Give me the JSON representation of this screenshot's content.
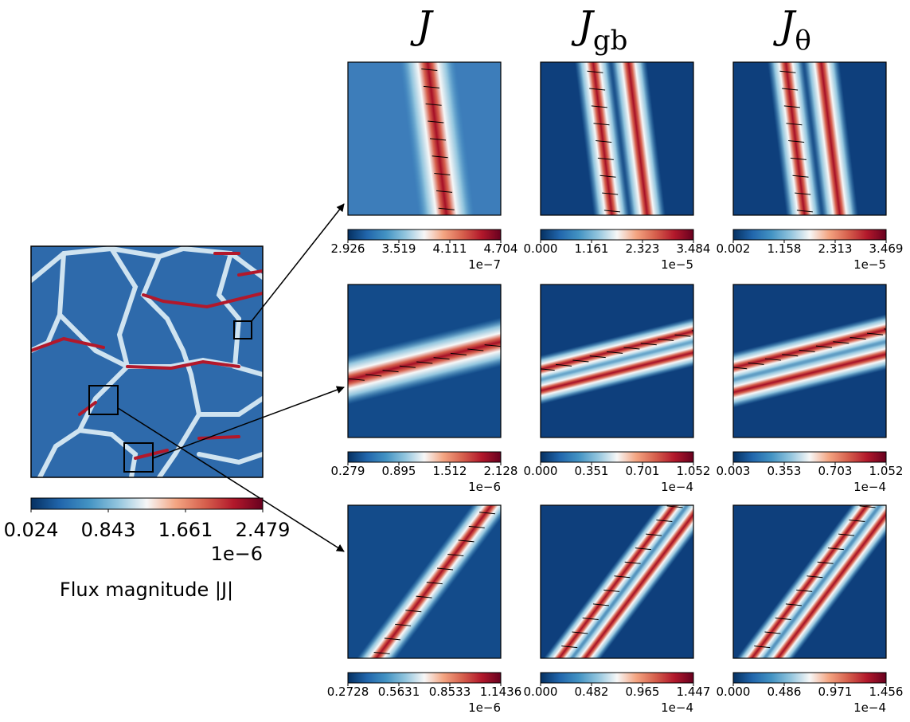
{
  "column_titles": [
    {
      "symbol": "J"
    },
    {
      "symbol": "J",
      "subscript": "gb"
    },
    {
      "symbol": "J",
      "subscript": "θ"
    }
  ],
  "overview": {
    "colorbar": {
      "ticks": [
        "0.024",
        "0.843",
        "1.661",
        "2.479"
      ],
      "exponent": "1e−6"
    },
    "label": "Flux magnitude |J|"
  },
  "panels": [
    [
      {
        "ticks": [
          "2.926",
          "3.519",
          "4.111",
          "4.704"
        ],
        "exponent": "1e−7"
      },
      {
        "ticks": [
          "0.000",
          "1.161",
          "2.323",
          "3.484"
        ],
        "exponent": "1e−5"
      },
      {
        "ticks": [
          "0.002",
          "1.158",
          "2.313",
          "3.469"
        ],
        "exponent": "1e−5"
      }
    ],
    [
      {
        "ticks": [
          "0.279",
          "0.895",
          "1.512",
          "2.128"
        ],
        "exponent": "1e−6"
      },
      {
        "ticks": [
          "0.000",
          "0.351",
          "0.701",
          "1.052"
        ],
        "exponent": "1e−4"
      },
      {
        "ticks": [
          "0.003",
          "0.353",
          "0.703",
          "1.052"
        ],
        "exponent": "1e−4"
      }
    ],
    [
      {
        "ticks": [
          "0.2728",
          "0.5631",
          "0.8533",
          "1.1436"
        ],
        "exponent": "1e−6"
      },
      {
        "ticks": [
          "0.000",
          "0.482",
          "0.965",
          "1.447"
        ],
        "exponent": "1e−4"
      },
      {
        "ticks": [
          "0.000",
          "0.486",
          "0.971",
          "1.456"
        ],
        "exponent": "1e−4"
      }
    ]
  ]
}
